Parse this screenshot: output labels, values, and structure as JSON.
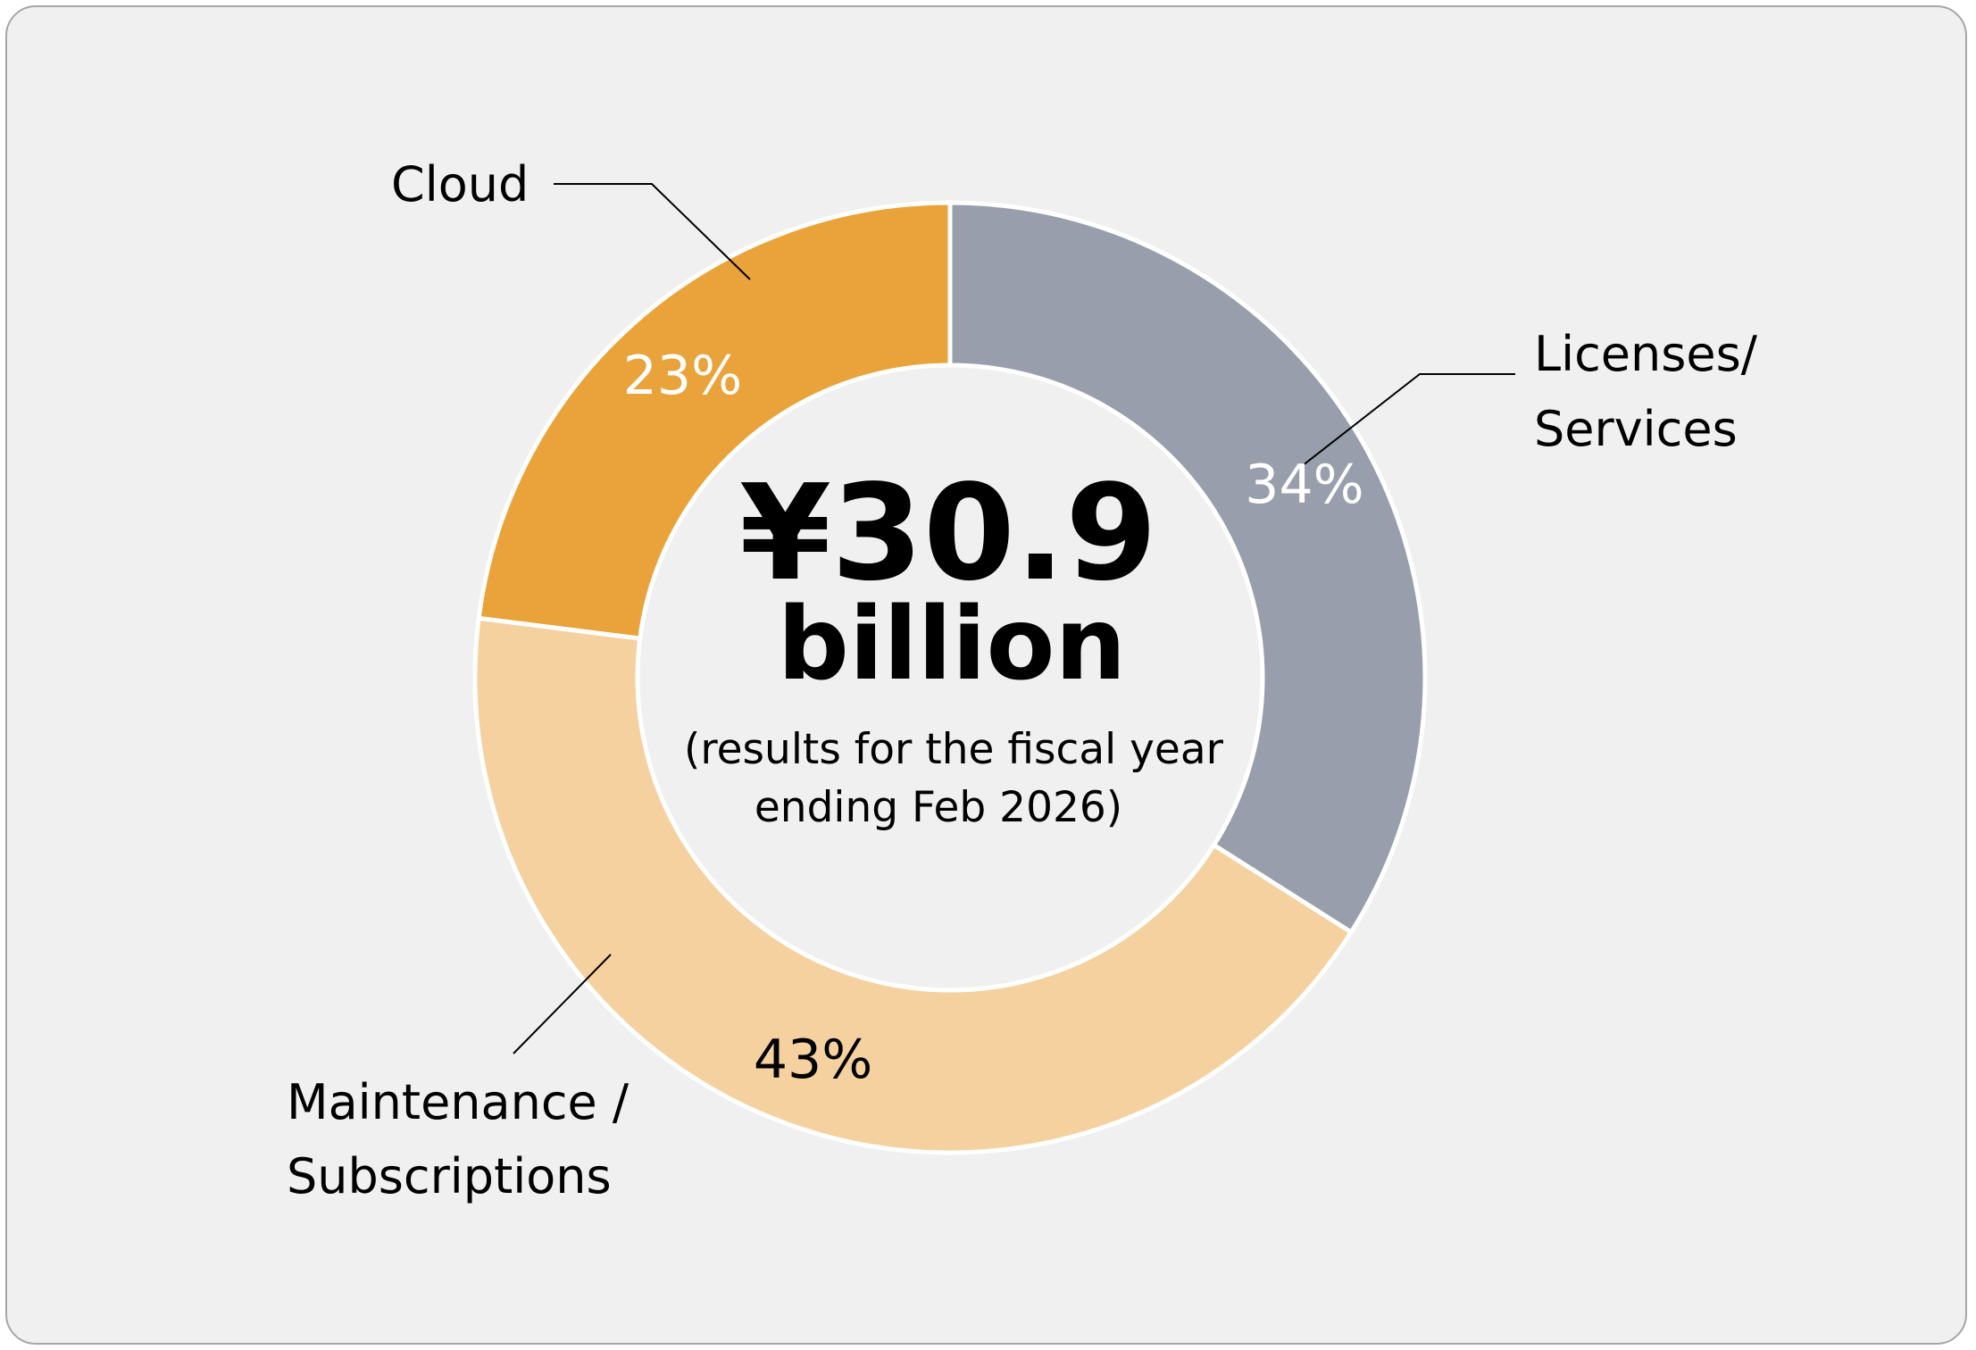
{
  "chart_data": {
    "type": "pie",
    "variant": "donut",
    "total": {
      "amount": "¥30.9",
      "unit": "billion",
      "note_line1": "(results for the fiscal year",
      "note_line2": "ending Feb 2026)"
    },
    "slices": [
      {
        "label_lines": [
          "Licenses/",
          "Services"
        ],
        "value": 34,
        "value_label": "34%",
        "color": "#989eab",
        "value_label_color": "#ffffff"
      },
      {
        "label_lines": [
          "Maintenance /",
          "Subscriptions"
        ],
        "value": 43,
        "value_label": "43%",
        "color": "#f5d19f",
        "value_label_color": "#000000"
      },
      {
        "label_lines": [
          "Cloud"
        ],
        "value": 23,
        "value_label": "23%",
        "color": "#eaa33b",
        "value_label_color": "#ffffff"
      }
    ],
    "start_angle_deg": 0,
    "direction": "clockwise"
  },
  "colors": {
    "panel_background": "#f0f0f0",
    "panel_border": "#a6a6a6",
    "slice_separator": "#ffffff",
    "text": "#000000",
    "leader_line": "#000000"
  }
}
